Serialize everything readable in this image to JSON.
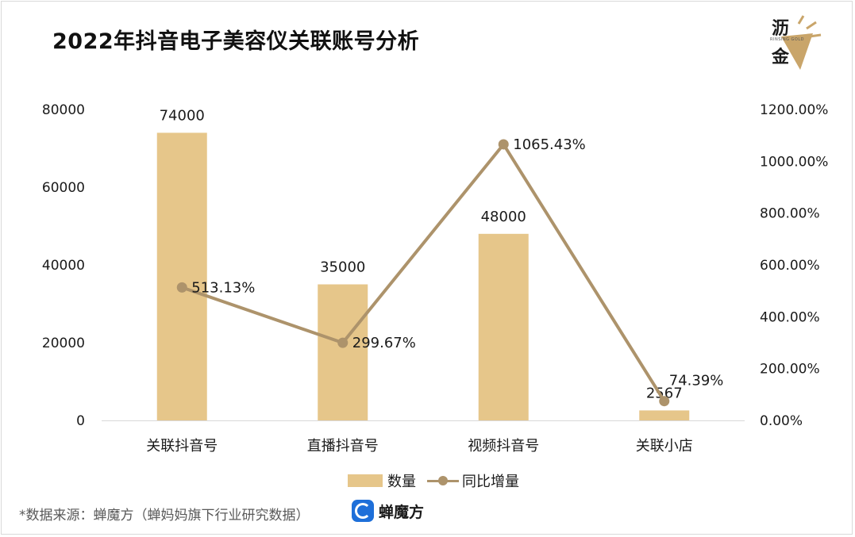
{
  "title": "2022年抖音电子美容仪关联账号分析",
  "logo": {
    "cn_top": "沥",
    "cn_bottom": "金",
    "en": "RINSING GOLD"
  },
  "colors": {
    "bar": "#e6c68a",
    "line": "#ad936b",
    "text": "#1a1a1a"
  },
  "legend": {
    "bar_label": "数量",
    "line_label": "同比增量"
  },
  "source_text": "*数据来源：蝉魔方（蝉妈妈旗下行业研究数据）",
  "brand": {
    "name": "蝉魔方",
    "icon": "chanmofang-logo-icon"
  },
  "chart_data": {
    "type": "bar",
    "categories": [
      "关联抖音号",
      "直播抖音号",
      "视频抖音号",
      "关联小店"
    ],
    "series": [
      {
        "name": "数量",
        "type": "bar",
        "axis": "left",
        "values": [
          74000,
          35000,
          48000,
          2567
        ],
        "labels": [
          "74000",
          "35000",
          "48000",
          "2567"
        ]
      },
      {
        "name": "同比增量",
        "type": "line",
        "axis": "right",
        "values": [
          513.13,
          299.67,
          1065.43,
          74.39
        ],
        "labels": [
          "513.13%",
          "299.67%",
          "1065.43%",
          "74.39%"
        ]
      }
    ],
    "y_left": {
      "ylim": [
        0,
        80000
      ],
      "ticks": [
        "0",
        "20000",
        "40000",
        "60000",
        "80000"
      ]
    },
    "y_right": {
      "ylim": [
        0,
        1200
      ],
      "ticks": [
        "0.00%",
        "200.00%",
        "400.00%",
        "600.00%",
        "800.00%",
        "1000.00%",
        "1200.00%"
      ]
    },
    "grid": false,
    "legend_position": "bottom"
  }
}
